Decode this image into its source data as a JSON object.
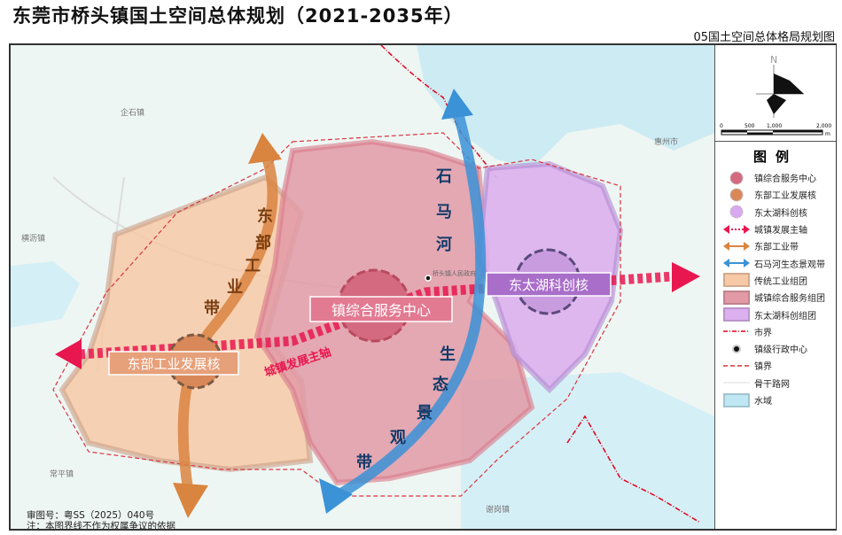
{
  "title": "东莞市桥头镇国土空间总体规划（2021-2035年）",
  "subtitle": "05国土空间总体格局规划图",
  "map": {
    "labels": {
      "east_belt": [
        "东",
        "部",
        "工",
        "业",
        "带"
      ],
      "shima_belt_top": [
        "石",
        "马",
        "河"
      ],
      "shima_belt_bottom": [
        "生",
        "态",
        "景",
        "观",
        "带"
      ],
      "center": "镇综合服务中心",
      "east_core": "东部工业发展核",
      "east_lake": "东太湖科创核",
      "axis": "城镇发展主轴",
      "gov": "桥头镇人民政府"
    },
    "towns": [
      "企石镇",
      "横沥镇",
      "惠州市",
      "常平镇",
      "谢岗镇"
    ],
    "notes": [
      "审图号：粤SS（2025）040号",
      "注：本图界线不作为权属争议的依据"
    ]
  },
  "compass": {
    "north": "N"
  },
  "scale": {
    "ticks": [
      "0",
      "500",
      "1,000",
      "2,000"
    ],
    "unit": "m"
  },
  "legend": {
    "title": "图例",
    "items": [
      {
        "label": "镇综合服务中心",
        "icon": "pink-circle",
        "color": "#d46a80"
      },
      {
        "label": "东部工业发展核",
        "icon": "orange-circle",
        "color": "#d9885a"
      },
      {
        "label": "东太湖科创核",
        "icon": "purple-circle",
        "color": "#d9a8ee"
      },
      {
        "label": "城镇发展主轴",
        "icon": "red-dotted-arrow",
        "color": "#e8174f"
      },
      {
        "label": "东部工业带",
        "icon": "orange-double-arrow",
        "color": "#d9843f"
      },
      {
        "label": "石马河生态景观带",
        "icon": "blue-double-arrow",
        "color": "#3b92d6"
      },
      {
        "label": "传统工业组团",
        "icon": "orange-rect",
        "color": "#f7c9a6"
      },
      {
        "label": "城镇综合服务组团",
        "icon": "pink-rect",
        "color": "#e29aa6"
      },
      {
        "label": "东太湖科创组团",
        "icon": "purple-rect",
        "color": "#dcb0ee"
      },
      {
        "label": "市界",
        "icon": "dash-dot-line",
        "color": "#e3001b"
      },
      {
        "label": "镇级行政中心",
        "icon": "bullseye-dot",
        "color": "#111111"
      },
      {
        "label": "镇界",
        "icon": "dashed-line",
        "color": "#d9333f"
      },
      {
        "label": "骨干路网",
        "icon": "thin-line",
        "color": "#dddddd"
      },
      {
        "label": "水域",
        "icon": "water-rect",
        "color": "#bfe8f4"
      }
    ]
  }
}
